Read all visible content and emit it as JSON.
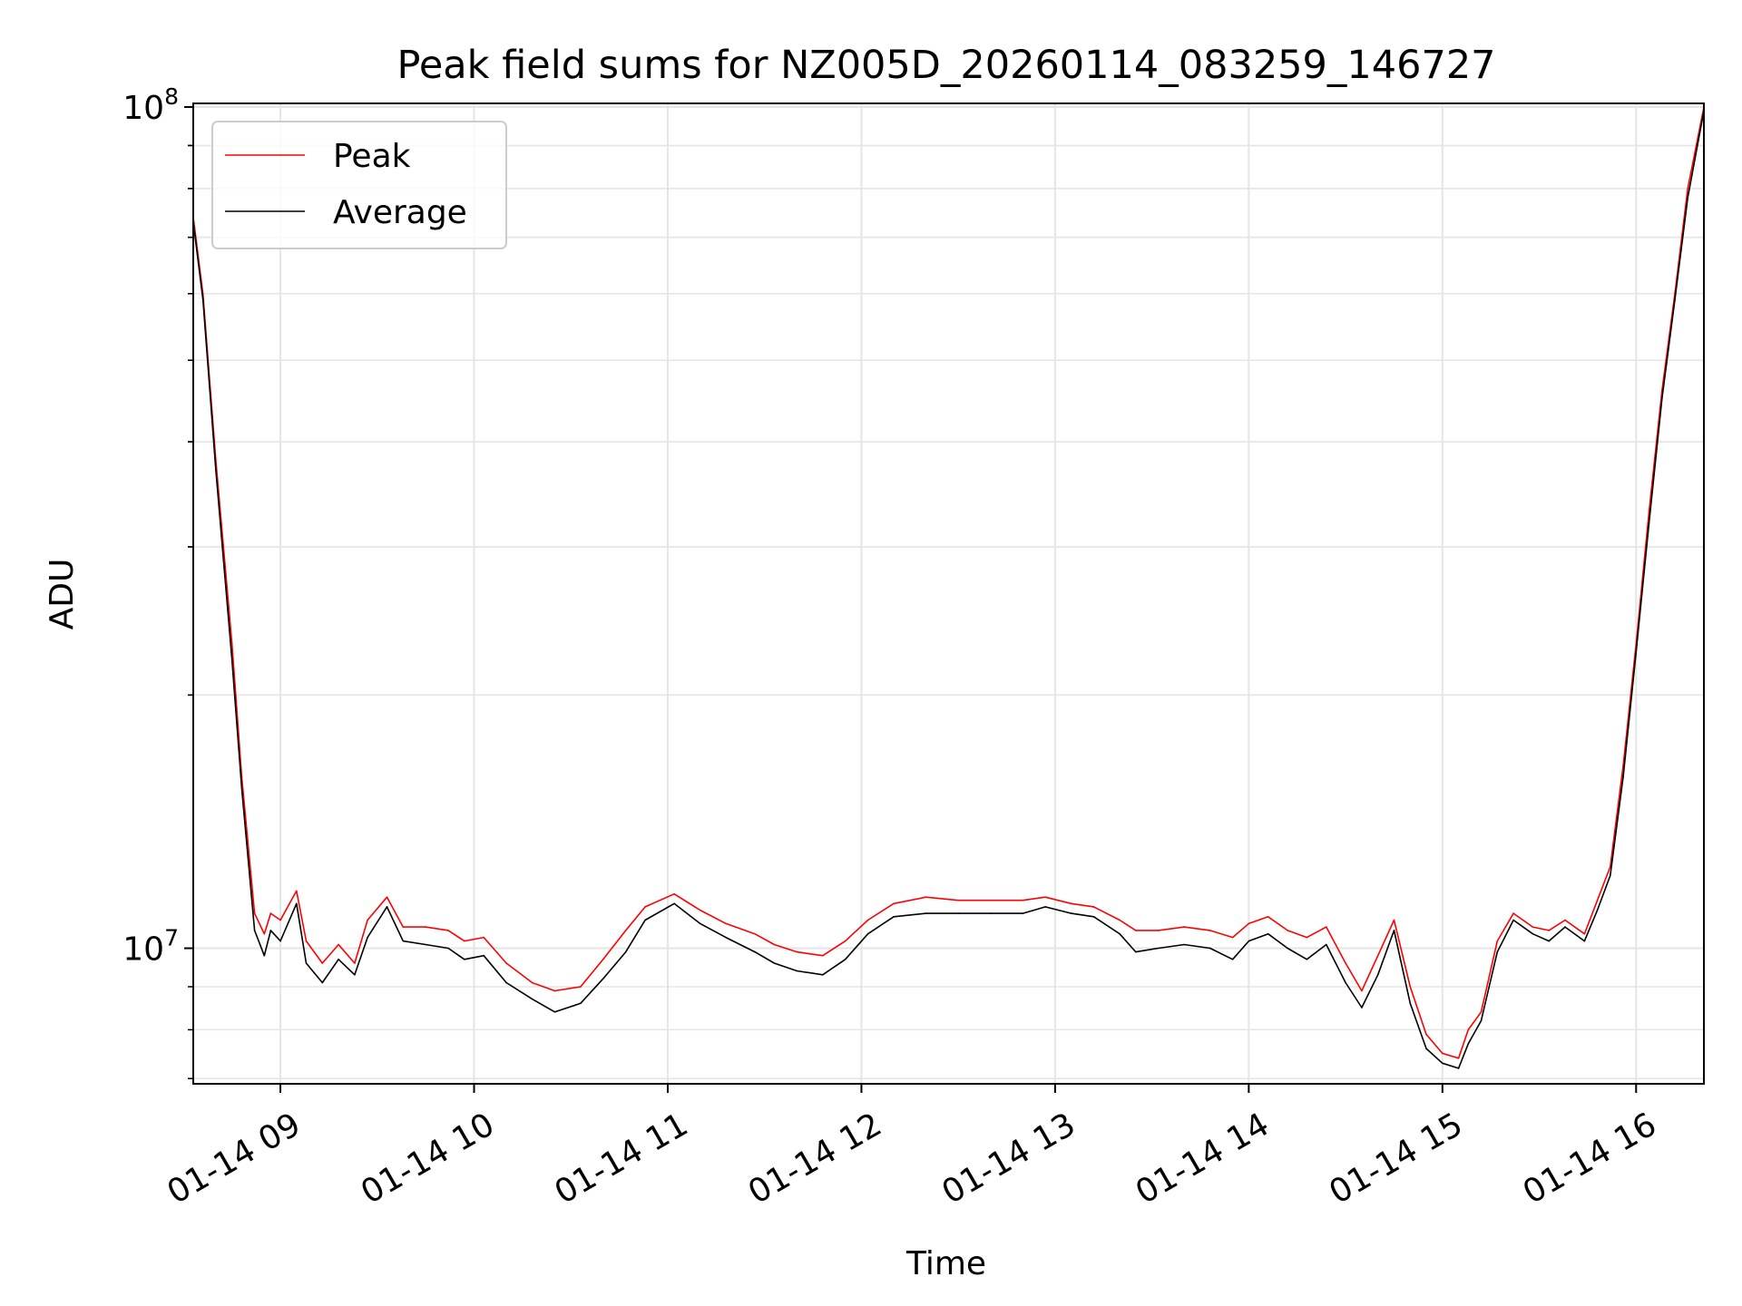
{
  "chart_data": {
    "type": "line",
    "title": "Peak field sums for NZ005D_20260114_083259_146727",
    "xlabel": "Time",
    "ylabel": "ADU",
    "x_scale": "time",
    "y_scale": "log",
    "xlim": [
      "2026-01-14 08:33",
      "2026-01-14 16:21"
    ],
    "ylim": [
      6900000,
      101000000
    ],
    "x_ticks": [
      "2026-01-14 09:00",
      "2026-01-14 10:00",
      "2026-01-14 11:00",
      "2026-01-14 12:00",
      "2026-01-14 13:00",
      "2026-01-14 14:00",
      "2026-01-14 15:00",
      "2026-01-14 16:00"
    ],
    "x_tick_labels": [
      "01-14 09",
      "01-14 10",
      "01-14 11",
      "01-14 12",
      "01-14 13",
      "01-14 14",
      "01-14 15",
      "01-14 16"
    ],
    "y_ticks": [
      10000000,
      100000000
    ],
    "y_tick_labels": [
      {
        "base": "10",
        "exp": "7"
      },
      {
        "base": "10",
        "exp": "8"
      }
    ],
    "grid": true,
    "legend_position": "upper-left",
    "colors": {
      "peak": "#ff0000",
      "average": "#000000",
      "grid": "#e5e5e5"
    },
    "x": [
      "2026-01-14 08:33",
      "2026-01-14 08:36",
      "2026-01-14 08:40",
      "2026-01-14 08:45",
      "2026-01-14 08:48",
      "2026-01-14 08:52",
      "2026-01-14 08:55",
      "2026-01-14 08:57",
      "2026-01-14 09:00",
      "2026-01-14 09:05",
      "2026-01-14 09:08",
      "2026-01-14 09:13",
      "2026-01-14 09:18",
      "2026-01-14 09:23",
      "2026-01-14 09:27",
      "2026-01-14 09:33",
      "2026-01-14 09:38",
      "2026-01-14 09:45",
      "2026-01-14 09:52",
      "2026-01-14 09:57",
      "2026-01-14 10:03",
      "2026-01-14 10:10",
      "2026-01-14 10:18",
      "2026-01-14 10:25",
      "2026-01-14 10:33",
      "2026-01-14 10:40",
      "2026-01-14 10:47",
      "2026-01-14 10:53",
      "2026-01-14 11:02",
      "2026-01-14 11:10",
      "2026-01-14 11:18",
      "2026-01-14 11:27",
      "2026-01-14 11:33",
      "2026-01-14 11:40",
      "2026-01-14 11:48",
      "2026-01-14 11:55",
      "2026-01-14 12:02",
      "2026-01-14 12:10",
      "2026-01-14 12:20",
      "2026-01-14 12:30",
      "2026-01-14 12:40",
      "2026-01-14 12:50",
      "2026-01-14 12:57",
      "2026-01-14 13:05",
      "2026-01-14 13:12",
      "2026-01-14 13:20",
      "2026-01-14 13:25",
      "2026-01-14 13:32",
      "2026-01-14 13:40",
      "2026-01-14 13:48",
      "2026-01-14 13:55",
      "2026-01-14 14:00",
      "2026-01-14 14:06",
      "2026-01-14 14:12",
      "2026-01-14 14:18",
      "2026-01-14 14:24",
      "2026-01-14 14:30",
      "2026-01-14 14:35",
      "2026-01-14 14:40",
      "2026-01-14 14:45",
      "2026-01-14 14:50",
      "2026-01-14 14:55",
      "2026-01-14 15:00",
      "2026-01-14 15:05",
      "2026-01-14 15:08",
      "2026-01-14 15:12",
      "2026-01-14 15:17",
      "2026-01-14 15:22",
      "2026-01-14 15:28",
      "2026-01-14 15:33",
      "2026-01-14 15:38",
      "2026-01-14 15:44",
      "2026-01-14 15:48",
      "2026-01-14 15:52",
      "2026-01-14 15:56",
      "2026-01-14 16:00",
      "2026-01-14 16:04",
      "2026-01-14 16:08",
      "2026-01-14 16:12",
      "2026-01-14 16:16",
      "2026-01-14 16:21"
    ],
    "series": [
      {
        "name": "Peak",
        "values": [
          74000000,
          60000000,
          38000000,
          23000000,
          16000000,
          11000000,
          10400000,
          11000000,
          10800000,
          11700000,
          10200000,
          9600000,
          10100000,
          9600000,
          10800000,
          11500000,
          10600000,
          10600000,
          10500000,
          10200000,
          10300000,
          9600000,
          9100000,
          8900000,
          9000000,
          9700000,
          10500000,
          11200000,
          11600000,
          11100000,
          10700000,
          10400000,
          10100000,
          9900000,
          9800000,
          10200000,
          10800000,
          11300000,
          11500000,
          11400000,
          11400000,
          11400000,
          11500000,
          11300000,
          11200000,
          10800000,
          10500000,
          10500000,
          10600000,
          10500000,
          10300000,
          10700000,
          10900000,
          10500000,
          10300000,
          10600000,
          9600000,
          8900000,
          9800000,
          10800000,
          9000000,
          7900000,
          7500000,
          7400000,
          8000000,
          8400000,
          10200000,
          11000000,
          10600000,
          10500000,
          10800000,
          10400000,
          11400000,
          12500000,
          16500000,
          23000000,
          33000000,
          46000000,
          60000000,
          80000000,
          100000000
        ]
      },
      {
        "name": "Average",
        "values": [
          73000000,
          59000000,
          37000000,
          22000000,
          15500000,
          10500000,
          9800000,
          10500000,
          10200000,
          11300000,
          9600000,
          9100000,
          9700000,
          9300000,
          10300000,
          11200000,
          10200000,
          10100000,
          10000000,
          9700000,
          9800000,
          9100000,
          8700000,
          8400000,
          8600000,
          9200000,
          9900000,
          10800000,
          11300000,
          10700000,
          10300000,
          9900000,
          9600000,
          9400000,
          9300000,
          9700000,
          10400000,
          10900000,
          11000000,
          11000000,
          11000000,
          11000000,
          11200000,
          11000000,
          10900000,
          10400000,
          9900000,
          10000000,
          10100000,
          10000000,
          9700000,
          10200000,
          10400000,
          10000000,
          9700000,
          10100000,
          9100000,
          8500000,
          9300000,
          10500000,
          8600000,
          7600000,
          7300000,
          7200000,
          7700000,
          8200000,
          9900000,
          10800000,
          10400000,
          10200000,
          10600000,
          10200000,
          11100000,
          12200000,
          16000000,
          22500000,
          32000000,
          45000000,
          59000000,
          78000000,
          99000000
        ]
      }
    ]
  }
}
